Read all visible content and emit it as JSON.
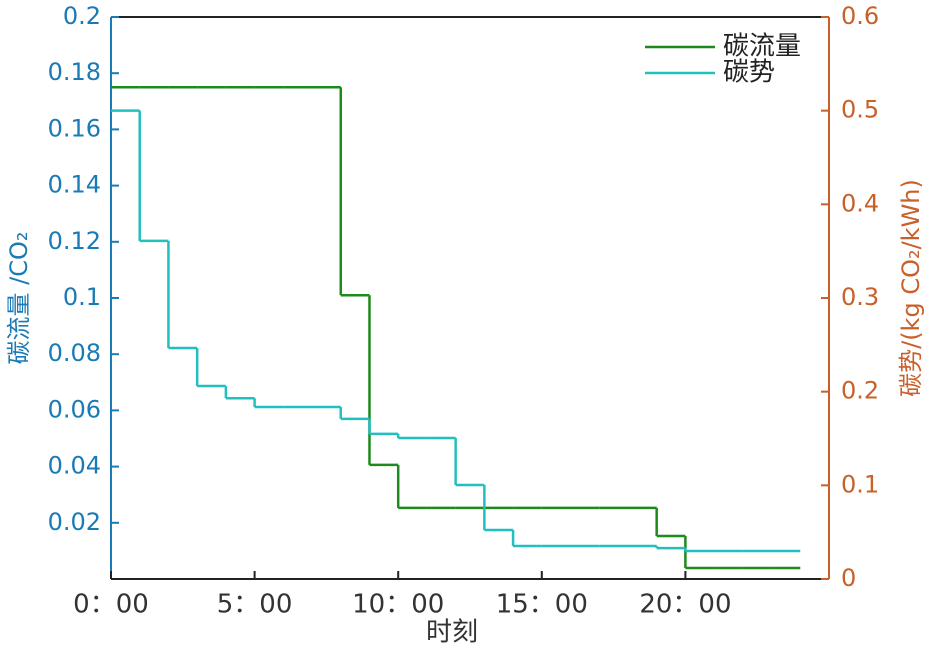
{
  "chart_data": {
    "type": "step",
    "xlabel": "时刻",
    "ylabel": "碳流量 /CO₂",
    "y2label": "碳势/(kg CO₂/kWh)",
    "x": [
      0,
      1,
      2,
      3,
      4,
      5,
      6,
      7,
      8,
      9,
      10,
      11,
      12,
      13,
      14,
      15,
      16,
      17,
      18,
      19,
      20,
      21,
      22,
      23
    ],
    "step_width": 1,
    "xlim": [
      0,
      25
    ],
    "xticks": [
      {
        "value": 0,
        "label": "0：00"
      },
      {
        "value": 5,
        "label": "5：00"
      },
      {
        "value": 10,
        "label": "10：00"
      },
      {
        "value": 15,
        "label": "15：00"
      },
      {
        "value": 20,
        "label": "20：00"
      }
    ],
    "ylim": [
      0,
      0.2
    ],
    "yticks": [
      0.02,
      0.04,
      0.06,
      0.08,
      0.1,
      0.12,
      0.14,
      0.16,
      0.18,
      0.2
    ],
    "y2lim": [
      0,
      0.6
    ],
    "y2ticks": [
      0,
      0.1,
      0.2,
      0.3,
      0.4,
      0.5,
      0.6
    ],
    "ycolor": "#1a7ab5",
    "y2color": "#c8602a",
    "legend": "upper right",
    "series": [
      {
        "name": "碳流量",
        "color": "#1e8a1e",
        "axis": "y",
        "values": [
          0.175,
          0.175,
          0.175,
          0.175,
          0.175,
          0.175,
          0.175,
          0.175,
          0.101,
          0.0406,
          0.0253,
          0.0253,
          0.0253,
          0.0253,
          0.0253,
          0.0253,
          0.0253,
          0.0253,
          0.0253,
          0.0153,
          0.0039,
          0.0039,
          0.0039,
          0.0039
        ]
      },
      {
        "name": "碳势",
        "color": "#22bfbf",
        "axis": "y2",
        "values": [
          0.5,
          0.361,
          0.2466,
          0.206,
          0.193,
          0.1836,
          0.1836,
          0.1836,
          0.171,
          0.155,
          0.1505,
          0.1505,
          0.1004,
          0.0523,
          0.0352,
          0.0352,
          0.0352,
          0.0352,
          0.0352,
          0.033,
          0.0299,
          0.0299,
          0.0299,
          0.0299
        ]
      }
    ]
  }
}
